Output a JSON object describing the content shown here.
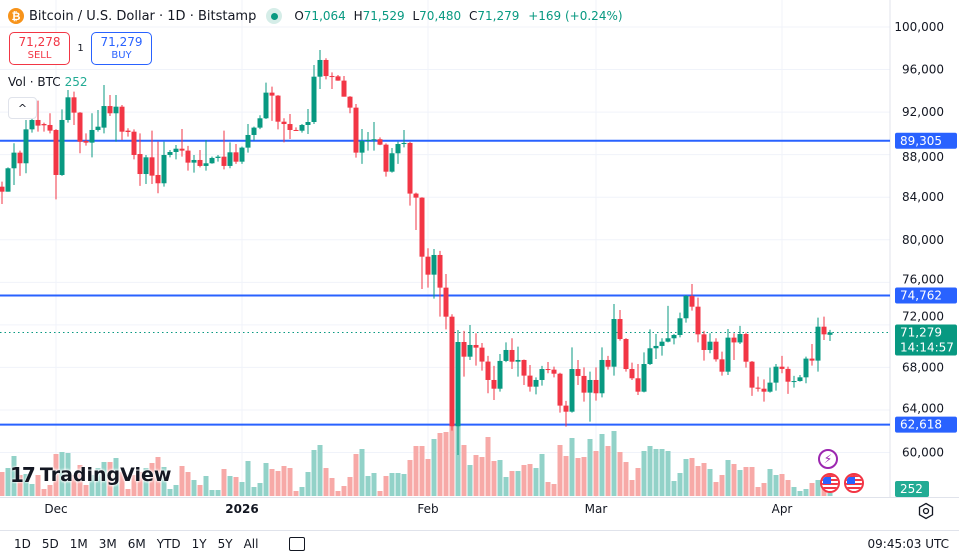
{
  "header": {
    "symbol_icon": "bitcoin-icon",
    "symbol_glyph": "₿",
    "title": "Bitcoin / U.S. Dollar · 1D · Bitstamp",
    "market_status": "open",
    "ohlc": {
      "o_label": "O",
      "o": "71,064",
      "h_label": "H",
      "h": "71,529",
      "l_label": "L",
      "l": "70,480",
      "c_label": "C",
      "c": "71,279",
      "change": "+169 (+0.24%)"
    }
  },
  "trade": {
    "sell_price": "71,278",
    "sell_label": "SELL",
    "quantity": "1",
    "buy_price": "71,279",
    "buy_label": "BUY"
  },
  "volume_legend": {
    "label": "Vol · BTC",
    "value": "252"
  },
  "collapse_glyph": "^",
  "logo": {
    "text": "TradingView"
  },
  "colors": {
    "up": "#089981",
    "down": "#f23645",
    "up_volume": "#92d2c8",
    "down_volume": "#f7a9a7",
    "level_line": "#2962ff",
    "grid": "#f0f3fa",
    "last_price": "#089981"
  },
  "price_axis": {
    "ticks": [
      "100,000",
      "96,000",
      "92,000",
      "88,000",
      "84,000",
      "80,000",
      "76,000",
      "72,000",
      "68,000",
      "64,000",
      "60,000"
    ]
  },
  "time_axis": {
    "labels": [
      {
        "date": "2025-12-01",
        "text": "Dec",
        "bold": false
      },
      {
        "date": "2026-01-01",
        "text": "2026",
        "bold": true
      },
      {
        "date": "2026-02-01",
        "text": "Feb",
        "bold": false
      },
      {
        "date": "2026-03-01",
        "text": "Mar",
        "bold": false
      },
      {
        "date": "2026-04-01",
        "text": "Apr",
        "bold": false
      }
    ]
  },
  "chart_data": {
    "type": "candlestick",
    "symbol": "BTCUSD",
    "interval": "1D",
    "ylim": [
      59000,
      101500
    ],
    "price_ticks": [
      100000,
      96000,
      92000,
      88000,
      84000,
      80000,
      76000,
      72000,
      68000,
      64000,
      60000
    ],
    "grid": true,
    "horizontal_lines": [
      {
        "value": 89305,
        "label": "89,305"
      },
      {
        "value": 74762,
        "label": "74,762"
      },
      {
        "value": 62618,
        "label": "62,618"
      }
    ],
    "last_price": {
      "value": 71279,
      "label": "71,279",
      "countdown": "14:14:57"
    },
    "volume_last": {
      "value": 252,
      "label": "252"
    },
    "columns": [
      "date",
      "open",
      "high",
      "low",
      "close",
      "volume"
    ],
    "candles": [
      [
        "2025-11-22",
        84990,
        85460,
        83360,
        84520,
        2016
      ],
      [
        "2025-11-23",
        84520,
        86810,
        84520,
        86720,
        2352
      ],
      [
        "2025-11-24",
        86720,
        89070,
        85150,
        88190,
        3360
      ],
      [
        "2025-11-25",
        88190,
        88380,
        86000,
        87190,
        1764
      ],
      [
        "2025-11-26",
        87190,
        91260,
        86250,
        90380,
        1848
      ],
      [
        "2025-11-27",
        90380,
        91730,
        90070,
        91260,
        1008
      ],
      [
        "2025-11-28",
        91260,
        93080,
        90160,
        90730,
        1764
      ],
      [
        "2025-11-29",
        90880,
        91010,
        90160,
        90760,
        588
      ],
      [
        "2025-11-30",
        90790,
        91890,
        90000,
        90260,
        924
      ],
      [
        "2025-12-01",
        90320,
        90400,
        83800,
        86090,
        3528
      ],
      [
        "2025-12-02",
        86090,
        92260,
        86000,
        91260,
        3696
      ],
      [
        "2025-12-03",
        91260,
        94080,
        91010,
        93390,
        3612
      ],
      [
        "2025-12-04",
        93390,
        93920,
        90790,
        91950,
        1764
      ],
      [
        "2025-12-05",
        91950,
        92000,
        88130,
        89220,
        2604
      ],
      [
        "2025-12-06",
        89290,
        90000,
        88850,
        89130,
        924
      ],
      [
        "2025-12-07",
        89130,
        91890,
        87750,
        90320,
        1764
      ],
      [
        "2025-12-08",
        90320,
        92200,
        90160,
        90630,
        2352
      ],
      [
        "2025-12-09",
        90540,
        94550,
        90000,
        92570,
        2856
      ],
      [
        "2025-12-10",
        92570,
        93610,
        91630,
        91890,
        2856
      ],
      [
        "2025-12-11",
        91890,
        93610,
        89220,
        92510,
        3192
      ],
      [
        "2025-12-12",
        92510,
        92670,
        89380,
        90160,
        2016
      ],
      [
        "2025-12-13",
        90260,
        90480,
        89690,
        90130,
        588
      ],
      [
        "2025-12-14",
        90160,
        90380,
        87560,
        87970,
        1764
      ],
      [
        "2025-12-15",
        88060,
        90000,
        85060,
        86180,
        2016
      ],
      [
        "2025-12-16",
        86180,
        87970,
        85240,
        87750,
        2352
      ],
      [
        "2025-12-17",
        87750,
        90260,
        85240,
        86030,
        2772
      ],
      [
        "2025-12-18",
        86090,
        89220,
        84370,
        85310,
        3276
      ],
      [
        "2025-12-19",
        85310,
        89220,
        84990,
        87970,
        2436
      ],
      [
        "2025-12-20",
        87970,
        88440,
        87750,
        88250,
        588
      ],
      [
        "2025-12-21",
        88250,
        88910,
        87560,
        88560,
        924
      ],
      [
        "2025-12-22",
        88560,
        90410,
        87810,
        88380,
        2520
      ],
      [
        "2025-12-23",
        88380,
        88820,
        86500,
        87250,
        2016
      ],
      [
        "2025-12-24",
        87250,
        87970,
        86310,
        87500,
        1344
      ],
      [
        "2025-12-25",
        87500,
        88440,
        86810,
        86940,
        924
      ],
      [
        "2025-12-26",
        86940,
        89380,
        86500,
        87190,
        1680
      ],
      [
        "2025-12-27",
        87190,
        87810,
        87150,
        87690,
        504
      ],
      [
        "2025-12-28",
        87690,
        87970,
        87340,
        87810,
        504
      ],
      [
        "2025-12-29",
        87810,
        90260,
        86620,
        86940,
        2268
      ],
      [
        "2025-12-30",
        86940,
        89160,
        86720,
        88220,
        1680
      ],
      [
        "2025-12-31",
        88220,
        89000,
        87130,
        87340,
        1596
      ],
      [
        "2026-01-01",
        87340,
        88750,
        87130,
        88660,
        1176
      ],
      [
        "2026-01-02",
        88660,
        90880,
        88190,
        89850,
        2940
      ],
      [
        "2026-01-03",
        89850,
        90630,
        89320,
        90540,
        756
      ],
      [
        "2026-01-04",
        90540,
        91700,
        90400,
        91420,
        1092
      ],
      [
        "2026-01-05",
        91420,
        94770,
        91350,
        93830,
        2772
      ],
      [
        "2026-01-06",
        93830,
        94390,
        91170,
        93550,
        2268
      ],
      [
        "2026-01-07",
        93550,
        93600,
        90380,
        91100,
        2100
      ],
      [
        "2026-01-08",
        91100,
        91420,
        89160,
        90880,
        2520
      ],
      [
        "2026-01-09",
        90880,
        91820,
        89470,
        90320,
        2352
      ],
      [
        "2026-01-10",
        90320,
        90570,
        90220,
        90250,
        420
      ],
      [
        "2026-01-11",
        90250,
        90880,
        90070,
        90790,
        756
      ],
      [
        "2026-01-12",
        90790,
        92290,
        89940,
        91070,
        2016
      ],
      [
        "2026-01-13",
        91070,
        96430,
        90880,
        95330,
        3864
      ],
      [
        "2026-01-14",
        95330,
        97840,
        94170,
        96900,
        4284
      ],
      [
        "2026-01-15",
        96900,
        97060,
        95080,
        95390,
        2352
      ],
      [
        "2026-01-16",
        95390,
        95740,
        94170,
        95360,
        1512
      ],
      [
        "2026-01-17",
        95360,
        95490,
        94950,
        94960,
        420
      ],
      [
        "2026-01-18",
        94960,
        95390,
        93450,
        93450,
        840
      ],
      [
        "2026-01-19",
        93450,
        93500,
        91890,
        92420,
        1596
      ],
      [
        "2026-01-20",
        92420,
        92760,
        87720,
        88190,
        3528
      ],
      [
        "2026-01-21",
        88190,
        90410,
        87130,
        89290,
        3948
      ],
      [
        "2026-01-22",
        89290,
        90130,
        88380,
        89380,
        1680
      ],
      [
        "2026-01-23",
        89380,
        91070,
        88380,
        89450,
        1932
      ],
      [
        "2026-01-24",
        89450,
        89630,
        88900,
        88940,
        420
      ],
      [
        "2026-01-25",
        88940,
        89060,
        85930,
        86400,
        1680
      ],
      [
        "2026-01-26",
        86400,
        88630,
        86310,
        88130,
        1932
      ],
      [
        "2026-01-27",
        88130,
        89220,
        87130,
        89000,
        1932
      ],
      [
        "2026-01-28",
        89000,
        90320,
        88690,
        89100,
        1848
      ],
      [
        "2026-01-29",
        89100,
        89200,
        83210,
        84340,
        3024
      ],
      [
        "2026-01-30",
        84340,
        84430,
        80920,
        83960,
        4200
      ],
      [
        "2026-01-31",
        83960,
        84000,
        75370,
        78410,
        4200
      ],
      [
        "2026-02-01",
        78410,
        79200,
        75500,
        76720,
        3108
      ],
      [
        "2026-02-02",
        76720,
        79130,
        74470,
        78570,
        4788
      ],
      [
        "2026-02-03",
        78570,
        78950,
        72770,
        75500,
        5292
      ],
      [
        "2026-02-04",
        75500,
        76780,
        71580,
        72770,
        5376
      ],
      [
        "2026-02-05",
        72770,
        73000,
        62060,
        62440,
        5796
      ],
      [
        "2026-02-06",
        62440,
        71520,
        59770,
        70390,
        5796
      ],
      [
        "2026-02-07",
        70390,
        71430,
        67140,
        69010,
        4284
      ],
      [
        "2026-02-08",
        69010,
        71990,
        68700,
        70110,
        2604
      ],
      [
        "2026-02-09",
        70110,
        71210,
        68170,
        69860,
        3444
      ],
      [
        "2026-02-10",
        69860,
        70300,
        67700,
        68550,
        3276
      ],
      [
        "2026-02-11",
        68550,
        69080,
        65570,
        66820,
        4956
      ],
      [
        "2026-02-12",
        66820,
        68140,
        64940,
        66000,
        2940
      ],
      [
        "2026-02-13",
        66000,
        69260,
        65720,
        68610,
        3024
      ],
      [
        "2026-02-14",
        68610,
        70360,
        68500,
        69640,
        1596
      ],
      [
        "2026-02-15",
        69640,
        70740,
        67850,
        68540,
        2100
      ],
      [
        "2026-02-16",
        68540,
        69950,
        67130,
        68700,
        2100
      ],
      [
        "2026-02-17",
        68700,
        68750,
        66350,
        67230,
        2604
      ],
      [
        "2026-02-18",
        67230,
        68230,
        65720,
        66190,
        2688
      ],
      [
        "2026-02-19",
        66190,
        67070,
        65470,
        66820,
        2352
      ],
      [
        "2026-02-20",
        66820,
        68140,
        66290,
        67850,
        3528
      ],
      [
        "2026-02-21",
        67850,
        68510,
        67450,
        67790,
        1176
      ],
      [
        "2026-02-22",
        67790,
        68070,
        67070,
        67410,
        1008
      ],
      [
        "2026-02-23",
        67410,
        67500,
        63750,
        64410,
        4284
      ],
      [
        "2026-02-24",
        64410,
        64850,
        62430,
        63840,
        3360
      ],
      [
        "2026-02-25",
        63840,
        69890,
        63750,
        67850,
        4872
      ],
      [
        "2026-02-26",
        67850,
        68700,
        66350,
        67200,
        3192
      ],
      [
        "2026-02-27",
        67200,
        68010,
        64780,
        65630,
        3276
      ],
      [
        "2026-02-28",
        65630,
        67600,
        62900,
        66820,
        4788
      ],
      [
        "2026-03-01",
        66820,
        68010,
        64880,
        65570,
        3780
      ],
      [
        "2026-03-02",
        65570,
        69890,
        65190,
        68700,
        5208
      ],
      [
        "2026-03-03",
        68700,
        69080,
        67790,
        68070,
        4200
      ],
      [
        "2026-03-04",
        68070,
        73960,
        67230,
        72550,
        5460
      ],
      [
        "2026-03-05",
        72550,
        73400,
        70520,
        70670,
        3696
      ],
      [
        "2026-03-06",
        70670,
        70750,
        67600,
        67850,
        2856
      ],
      [
        "2026-03-07",
        67850,
        68450,
        66820,
        66980,
        1344
      ],
      [
        "2026-03-08",
        66980,
        68320,
        65410,
        65720,
        2352
      ],
      [
        "2026-03-09",
        65720,
        69420,
        65650,
        68320,
        3780
      ],
      [
        "2026-03-10",
        68320,
        71580,
        68230,
        69800,
        4200
      ],
      [
        "2026-03-11",
        69800,
        71140,
        68790,
        70020,
        3948
      ],
      [
        "2026-03-12",
        70020,
        70740,
        69110,
        70420,
        3948
      ],
      [
        "2026-03-13",
        70420,
        73780,
        70350,
        70740,
        3780
      ],
      [
        "2026-03-14",
        70740,
        71140,
        70170,
        71050,
        1260
      ],
      [
        "2026-03-15",
        71050,
        73150,
        70830,
        72620,
        1932
      ],
      [
        "2026-03-16",
        72620,
        74810,
        72210,
        74720,
        3108
      ],
      [
        "2026-03-17",
        74720,
        75840,
        73340,
        73710,
        3192
      ],
      [
        "2026-03-18",
        73710,
        74560,
        70350,
        71110,
        2520
      ],
      [
        "2026-03-19",
        71110,
        71430,
        68640,
        69640,
        2772
      ],
      [
        "2026-03-20",
        69640,
        71210,
        69330,
        70420,
        2268
      ],
      [
        "2026-03-21",
        70420,
        70740,
        68540,
        68760,
        1176
      ],
      [
        "2026-03-22",
        68760,
        69480,
        67230,
        67600,
        1764
      ],
      [
        "2026-03-23",
        67600,
        71610,
        67290,
        70800,
        3024
      ],
      [
        "2026-03-24",
        70800,
        71210,
        68700,
        70350,
        2688
      ],
      [
        "2026-03-25",
        70350,
        71900,
        70200,
        71140,
        2184
      ],
      [
        "2026-03-26",
        71140,
        71270,
        67980,
        68540,
        2436
      ],
      [
        "2026-03-27",
        68540,
        68600,
        65320,
        66100,
        2436
      ],
      [
        "2026-03-28",
        66100,
        67130,
        65720,
        66000,
        756
      ],
      [
        "2026-03-29",
        66000,
        66880,
        64780,
        65720,
        1092
      ],
      [
        "2026-03-30",
        65720,
        67980,
        65630,
        66570,
        2268
      ],
      [
        "2026-03-31",
        66570,
        68320,
        65820,
        68070,
        1764
      ],
      [
        "2026-04-01",
        68070,
        69080,
        67450,
        67860,
        1848
      ],
      [
        "2026-04-02",
        67860,
        68070,
        65510,
        66660,
        1344
      ],
      [
        "2026-04-03",
        66660,
        67200,
        66100,
        66720,
        756
      ],
      [
        "2026-04-04",
        66720,
        67290,
        66660,
        67070,
        420
      ],
      [
        "2026-04-05",
        67070,
        69010,
        66510,
        68830,
        588
      ],
      [
        "2026-04-06",
        68830,
        70200,
        68170,
        68640,
        1092
      ],
      [
        "2026-04-07",
        68640,
        72680,
        67600,
        71830,
        1344
      ],
      [
        "2026-04-08",
        71830,
        72770,
        70580,
        71110,
        756
      ],
      [
        "2026-04-09",
        71064,
        71529,
        70480,
        71279,
        252
      ]
    ]
  },
  "events": [
    {
      "icon": "lightning-icon",
      "glyph": "⚡"
    },
    {
      "icon": "us-flag-icon"
    },
    {
      "icon": "us-flag-icon"
    }
  ],
  "toolbar": {
    "ranges": [
      "1D",
      "5D",
      "1M",
      "3M",
      "6M",
      "YTD",
      "1Y",
      "5Y",
      "All"
    ],
    "calendar_icon": "calendar-range-icon",
    "clock": "09:45:03 UTC"
  },
  "settings_icon": "chart-settings-icon"
}
